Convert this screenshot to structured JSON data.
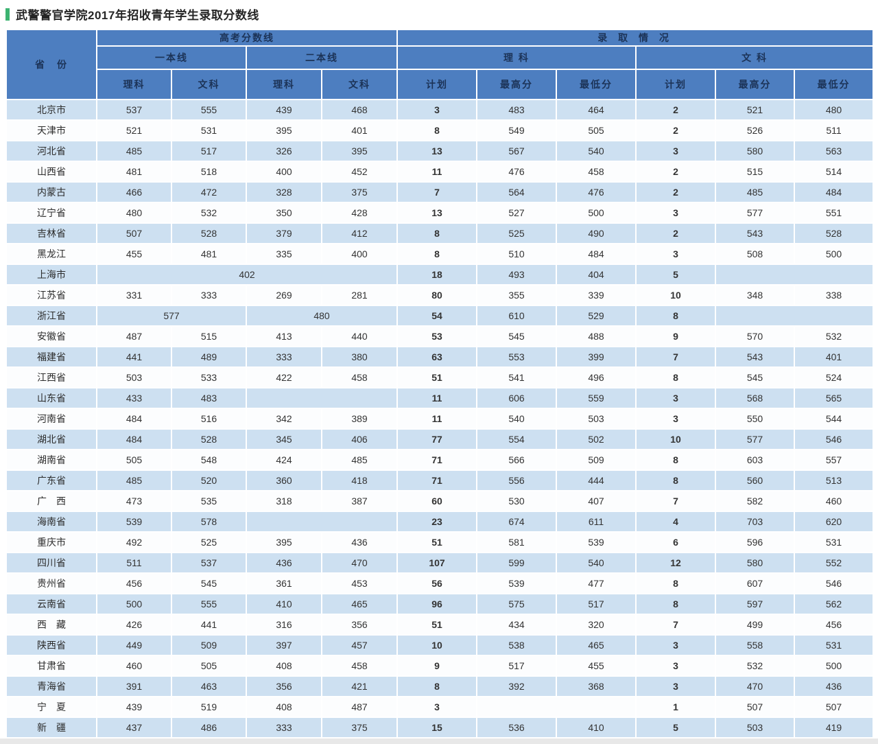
{
  "page": {
    "title": "武警警官学院2017年招收青年学生录取分数线"
  },
  "colors": {
    "accent_green": "#3cb371",
    "header_bg": "#4d7ec0",
    "header_text": "#1c3357",
    "row_odd_bg": "#cde0f1",
    "row_even_bg": "#fcfdfe",
    "grid_line": "#ffffff",
    "bottom_strip": "#e8e8e8"
  },
  "table": {
    "header": {
      "province": "省　份",
      "gaokao": "高考分数线",
      "admission": "录 取 情 况",
      "tier1": "一本线",
      "tier2": "二本线",
      "science": "理 科",
      "arts": "文 科",
      "sub": [
        "理科",
        "文科",
        "理科",
        "文科",
        "计划",
        "最高分",
        "最低分",
        "计划",
        "最高分",
        "最低分"
      ]
    },
    "rows": [
      {
        "province": "北京市",
        "cells": [
          "537",
          "555",
          "439",
          "468",
          "3",
          "483",
          "464",
          "2",
          "521",
          "480"
        ]
      },
      {
        "province": "天津市",
        "cells": [
          "521",
          "531",
          "395",
          "401",
          "8",
          "549",
          "505",
          "2",
          "526",
          "511"
        ]
      },
      {
        "province": "河北省",
        "cells": [
          "485",
          "517",
          "326",
          "395",
          "13",
          "567",
          "540",
          "3",
          "580",
          "563"
        ]
      },
      {
        "province": "山西省",
        "cells": [
          "481",
          "518",
          "400",
          "452",
          "11",
          "476",
          "458",
          "2",
          "515",
          "514"
        ]
      },
      {
        "province": "内蒙古",
        "cells": [
          "466",
          "472",
          "328",
          "375",
          "7",
          "564",
          "476",
          "2",
          "485",
          "484"
        ]
      },
      {
        "province": "辽宁省",
        "cells": [
          "480",
          "532",
          "350",
          "428",
          "13",
          "527",
          "500",
          "3",
          "577",
          "551"
        ]
      },
      {
        "province": "吉林省",
        "cells": [
          "507",
          "528",
          "379",
          "412",
          "8",
          "525",
          "490",
          "2",
          "543",
          "528"
        ]
      },
      {
        "province": "黑龙江",
        "cells": [
          "455",
          "481",
          "335",
          "400",
          "8",
          "510",
          "484",
          "3",
          "508",
          "500"
        ]
      },
      {
        "province": "上海市",
        "cells": [
          {
            "text": "402",
            "span": 4
          },
          "18",
          "493",
          "404",
          "5",
          {
            "text": "",
            "span": 2
          }
        ]
      },
      {
        "province": "江苏省",
        "cells": [
          "331",
          "333",
          "269",
          "281",
          "80",
          "355",
          "339",
          "10",
          "348",
          "338"
        ]
      },
      {
        "province": "浙江省",
        "cells": [
          {
            "text": "577",
            "span": 2
          },
          {
            "text": "480",
            "span": 2
          },
          "54",
          "610",
          "529",
          "8",
          {
            "text": "",
            "span": 2
          }
        ]
      },
      {
        "province": "安徽省",
        "cells": [
          "487",
          "515",
          "413",
          "440",
          "53",
          "545",
          "488",
          "9",
          "570",
          "532"
        ]
      },
      {
        "province": "福建省",
        "cells": [
          "441",
          "489",
          "333",
          "380",
          "63",
          "553",
          "399",
          "7",
          "543",
          "401"
        ]
      },
      {
        "province": "江西省",
        "cells": [
          "503",
          "533",
          "422",
          "458",
          "51",
          "541",
          "496",
          "8",
          "545",
          "524"
        ]
      },
      {
        "province": "山东省",
        "cells": [
          "433",
          "483",
          {
            "text": "",
            "span": 2
          },
          "11",
          "606",
          "559",
          "3",
          "568",
          "565"
        ]
      },
      {
        "province": "河南省",
        "cells": [
          "484",
          "516",
          "342",
          "389",
          "11",
          "540",
          "503",
          "3",
          "550",
          "544"
        ]
      },
      {
        "province": "湖北省",
        "cells": [
          "484",
          "528",
          "345",
          "406",
          "77",
          "554",
          "502",
          "10",
          "577",
          "546"
        ]
      },
      {
        "province": "湖南省",
        "cells": [
          "505",
          "548",
          "424",
          "485",
          "71",
          "566",
          "509",
          "8",
          "603",
          "557"
        ]
      },
      {
        "province": "广东省",
        "cells": [
          "485",
          "520",
          "360",
          "418",
          "71",
          "556",
          "444",
          "8",
          "560",
          "513"
        ]
      },
      {
        "province": "广　西",
        "cells": [
          "473",
          "535",
          "318",
          "387",
          "60",
          "530",
          "407",
          "7",
          "582",
          "460"
        ]
      },
      {
        "province": "海南省",
        "cells": [
          "539",
          "578",
          {
            "text": "",
            "span": 2
          },
          "23",
          "674",
          "611",
          "4",
          "703",
          "620"
        ]
      },
      {
        "province": "重庆市",
        "cells": [
          "492",
          "525",
          "395",
          "436",
          "51",
          "581",
          "539",
          "6",
          "596",
          "531"
        ]
      },
      {
        "province": "四川省",
        "cells": [
          "511",
          "537",
          "436",
          "470",
          "107",
          "599",
          "540",
          "12",
          "580",
          "552"
        ]
      },
      {
        "province": "贵州省",
        "cells": [
          "456",
          "545",
          "361",
          "453",
          "56",
          "539",
          "477",
          "8",
          "607",
          "546"
        ]
      },
      {
        "province": "云南省",
        "cells": [
          "500",
          "555",
          "410",
          "465",
          "96",
          "575",
          "517",
          "8",
          "597",
          "562"
        ]
      },
      {
        "province": "西　藏",
        "cells": [
          "426",
          "441",
          "316",
          "356",
          "51",
          "434",
          "320",
          "7",
          "499",
          "456"
        ]
      },
      {
        "province": "陕西省",
        "cells": [
          "449",
          "509",
          "397",
          "457",
          "10",
          "538",
          "465",
          "3",
          "558",
          "531"
        ]
      },
      {
        "province": "甘肃省",
        "cells": [
          "460",
          "505",
          "408",
          "458",
          "9",
          "517",
          "455",
          "3",
          "532",
          "500"
        ]
      },
      {
        "province": "青海省",
        "cells": [
          "391",
          "463",
          "356",
          "421",
          "8",
          "392",
          "368",
          "3",
          "470",
          "436"
        ]
      },
      {
        "province": "宁　夏",
        "cells": [
          "439",
          "519",
          "408",
          "487",
          "3",
          {
            "text": "",
            "span": 2
          },
          "1",
          "507",
          "507"
        ]
      },
      {
        "province": "新　疆",
        "cells": [
          "437",
          "486",
          "333",
          "375",
          "15",
          "536",
          "410",
          "5",
          "503",
          "419"
        ]
      }
    ]
  }
}
